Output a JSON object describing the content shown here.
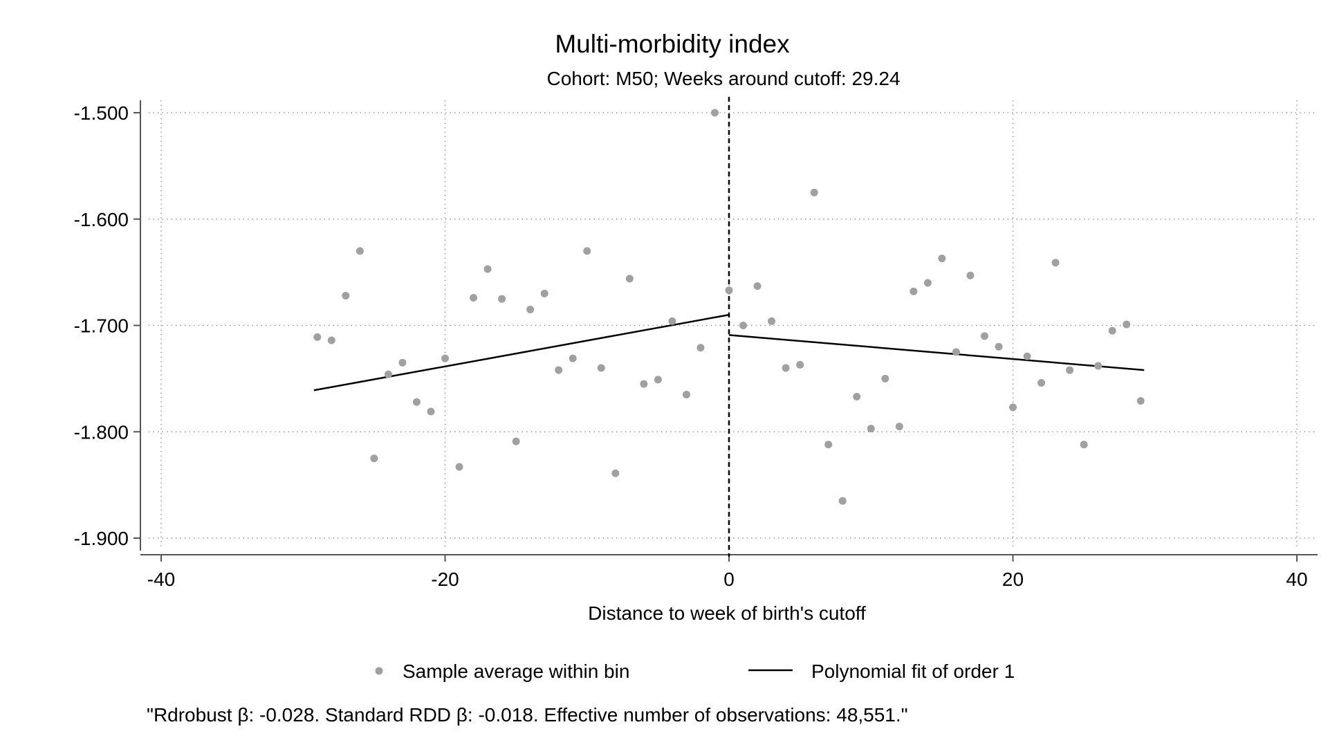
{
  "chart_data": {
    "type": "scatter",
    "title": "Multi-morbidity index",
    "subtitle": "Cohort: M50; Weeks around cutoff: 29.24",
    "xlabel": "Distance to week of birth's cutoff",
    "ylabel": "",
    "xlim": [
      -40,
      40
    ],
    "ylim": [
      -1.9,
      -1.5
    ],
    "xticks": [
      -40,
      -20,
      0,
      20,
      40
    ],
    "xtick_labels": [
      "-40",
      "-20",
      "0",
      "20",
      "40"
    ],
    "yticks": [
      -1.5,
      -1.6,
      -1.7,
      -1.8,
      -1.9
    ],
    "ytick_labels": [
      "-1.500",
      "-1.600",
      "-1.700",
      "-1.800",
      "-1.900"
    ],
    "grid": true,
    "cutoff_x": 0,
    "legend_position": "bottom",
    "series": [
      {
        "name": "Sample average within bin",
        "kind": "scatter",
        "color": "#a0a0a0",
        "points": [
          [
            -29,
            -1.711
          ],
          [
            -28,
            -1.714
          ],
          [
            -27,
            -1.672
          ],
          [
            -26,
            -1.63
          ],
          [
            -25,
            -1.825
          ],
          [
            -24,
            -1.746
          ],
          [
            -23,
            -1.735
          ],
          [
            -22,
            -1.772
          ],
          [
            -21,
            -1.781
          ],
          [
            -20,
            -1.731
          ],
          [
            -19,
            -1.833
          ],
          [
            -18,
            -1.674
          ],
          [
            -17,
            -1.647
          ],
          [
            -16,
            -1.675
          ],
          [
            -15,
            -1.809
          ],
          [
            -14,
            -1.685
          ],
          [
            -13,
            -1.67
          ],
          [
            -12,
            -1.742
          ],
          [
            -11,
            -1.731
          ],
          [
            -10,
            -1.63
          ],
          [
            -9,
            -1.74
          ],
          [
            -8,
            -1.839
          ],
          [
            -7,
            -1.656
          ],
          [
            -6,
            -1.755
          ],
          [
            -5,
            -1.751
          ],
          [
            -4,
            -1.696
          ],
          [
            -3,
            -1.765
          ],
          [
            -2,
            -1.721
          ],
          [
            -1,
            -1.5
          ],
          [
            0,
            -1.667
          ],
          [
            1,
            -1.7
          ],
          [
            2,
            -1.663
          ],
          [
            3,
            -1.696
          ],
          [
            4,
            -1.74
          ],
          [
            5,
            -1.737
          ],
          [
            6,
            -1.575
          ],
          [
            7,
            -1.812
          ],
          [
            8,
            -1.865
          ],
          [
            9,
            -1.767
          ],
          [
            10,
            -1.797
          ],
          [
            11,
            -1.75
          ],
          [
            12,
            -1.795
          ],
          [
            13,
            -1.668
          ],
          [
            14,
            -1.66
          ],
          [
            15,
            -1.637
          ],
          [
            16,
            -1.725
          ],
          [
            17,
            -1.653
          ],
          [
            18,
            -1.71
          ],
          [
            19,
            -1.72
          ],
          [
            20,
            -1.777
          ],
          [
            21,
            -1.729
          ],
          [
            22,
            -1.754
          ],
          [
            23,
            -1.641
          ],
          [
            24,
            -1.742
          ],
          [
            25,
            -1.812
          ],
          [
            26,
            -1.738
          ],
          [
            27,
            -1.705
          ],
          [
            28,
            -1.699
          ],
          [
            29,
            -1.771
          ]
        ]
      },
      {
        "name": "Polynomial fit of order 1",
        "kind": "line",
        "color": "#000000",
        "segments": [
          [
            [
              -29.24,
              -1.761
            ],
            [
              0,
              -1.69
            ]
          ],
          [
            [
              0,
              -1.709
            ],
            [
              29.24,
              -1.742
            ]
          ]
        ]
      }
    ],
    "note": "\"Rdrobust β: -0.028. Standard RDD β: -0.018. Effective number of observations: 48,551.\""
  }
}
